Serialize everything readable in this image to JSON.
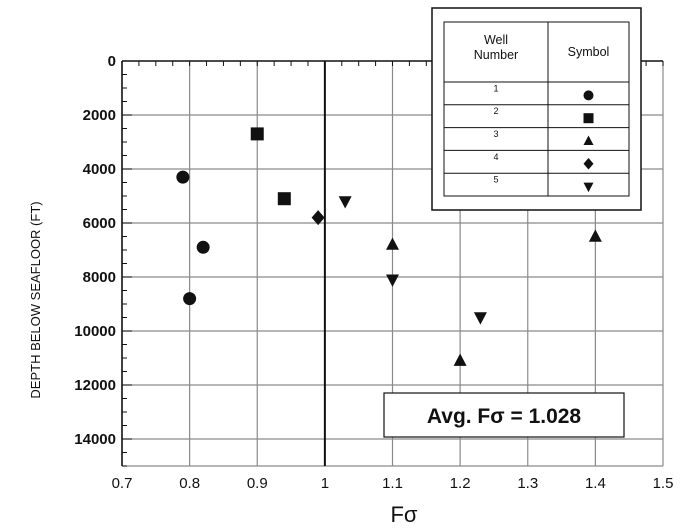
{
  "chart_data": {
    "type": "scatter",
    "title": "",
    "xlabel": "Fσ",
    "ylabel": "DEPTH BELOW SEAFLOOR (FT)",
    "xlim": [
      0.7,
      1.5
    ],
    "ylim": [
      0,
      15000
    ],
    "y_inverted": true,
    "grid": true,
    "x_ticks": [
      "0.7",
      "0.8",
      "0.9",
      "1",
      "1.1",
      "1.2",
      "1.3",
      "1.4",
      "1.5"
    ],
    "y_ticks": [
      "0",
      "2000",
      "4000",
      "6000",
      "8000",
      "10000",
      "12000",
      "14000"
    ],
    "reference_line": {
      "x": 1.0
    },
    "legend": {
      "position": "top-right",
      "col_well": "Well\nNumber",
      "col_symbol": "Symbol",
      "entries": [
        {
          "label": "1",
          "marker": "circle"
        },
        {
          "label": "2",
          "marker": "square"
        },
        {
          "label": "3",
          "marker": "triangle-up"
        },
        {
          "label": "4",
          "marker": "diamond"
        },
        {
          "label": "5",
          "marker": "triangle-down"
        }
      ]
    },
    "annotation": "Avg. Fσ  = 1.028",
    "series": [
      {
        "name": "1",
        "marker": "circle",
        "points": [
          [
            0.79,
            4300
          ],
          [
            0.82,
            6900
          ],
          [
            0.8,
            8800
          ]
        ]
      },
      {
        "name": "2",
        "marker": "square",
        "points": [
          [
            0.9,
            2700
          ],
          [
            0.94,
            5100
          ]
        ]
      },
      {
        "name": "3",
        "marker": "triangle-up",
        "points": [
          [
            1.1,
            6800
          ],
          [
            1.2,
            11100
          ],
          [
            1.4,
            6500
          ]
        ]
      },
      {
        "name": "4",
        "marker": "diamond",
        "points": [
          [
            0.99,
            5800
          ]
        ]
      },
      {
        "name": "5",
        "marker": "triangle-down",
        "points": [
          [
            1.03,
            5200
          ],
          [
            1.1,
            8100
          ],
          [
            1.23,
            9500
          ]
        ]
      }
    ],
    "colors": {
      "ink": "#111111",
      "grid": "#8a8a8a",
      "background": "#ffffff"
    }
  }
}
